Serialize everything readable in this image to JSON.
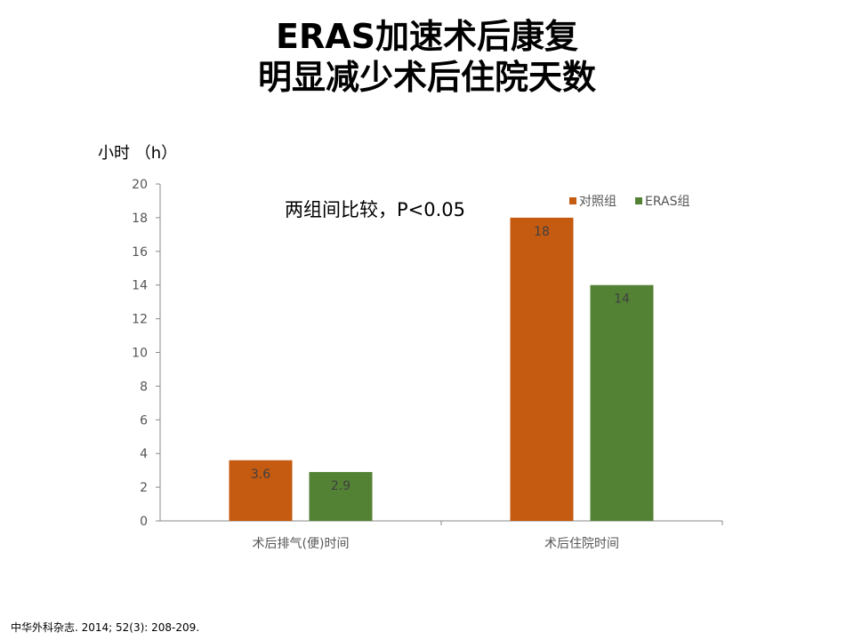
{
  "slide": {
    "title_line1": "ERAS加速术后康复",
    "title_line2": "明显减少术后住院天数",
    "citation": "中华外科杂志. 2014; 52(3): 208-209."
  },
  "chart_data": {
    "type": "bar",
    "ylabel": "小时 （h）",
    "annotation": "两组间比较，P<0.05",
    "categories": [
      "术后排气(便)时间",
      "术后住院时间"
    ],
    "series": [
      {
        "name": "对照组",
        "color": "#C55A11",
        "values": [
          3.6,
          18
        ]
      },
      {
        "name": "ERAS组",
        "color": "#548235",
        "values": [
          2.9,
          14
        ]
      }
    ],
    "data_labels": [
      [
        "3.6",
        "18"
      ],
      [
        "2.9",
        "14"
      ]
    ],
    "ylim": [
      0,
      20
    ],
    "yticks": [
      0,
      2,
      4,
      6,
      8,
      10,
      12,
      14,
      16,
      18,
      20
    ],
    "legend": "top-right",
    "grid": false
  }
}
